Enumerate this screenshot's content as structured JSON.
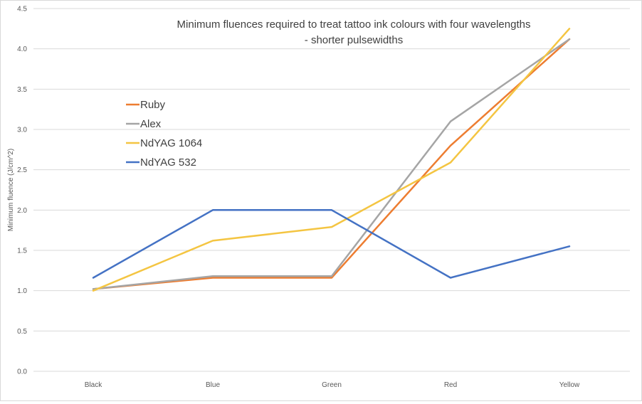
{
  "chart_data": {
    "type": "line",
    "title_line1": "Minimum fluences required to treat tattoo ink colours with four wavelengths",
    "title_line2": "- shorter pulsewidths",
    "xlabel": "",
    "ylabel": "Minimum fluence (J/cm^2)",
    "categories": [
      "Black",
      "Blue",
      "Green",
      "Red",
      "Yellow"
    ],
    "ylim": [
      0,
      4.5
    ],
    "yticks": [
      "0.0",
      "0.5",
      "1.0",
      "1.5",
      "2.0",
      "2.5",
      "3.0",
      "3.5",
      "4.0",
      "4.5"
    ],
    "grid": true,
    "legend_position": "left, inside plot",
    "series": [
      {
        "name": "Ruby",
        "color": "#ED7D31",
        "values": [
          1.02,
          1.16,
          1.16,
          2.8,
          4.12
        ]
      },
      {
        "name": "Alex",
        "color": "#A5A5A5",
        "values": [
          1.02,
          1.18,
          1.18,
          3.1,
          4.12
        ]
      },
      {
        "name": "NdYAG 1064",
        "color": "#F4C542",
        "values": [
          1.0,
          1.62,
          1.79,
          2.59,
          4.25
        ]
      },
      {
        "name": "NdYAG 532",
        "color": "#4472C4",
        "values": [
          1.16,
          2.0,
          2.0,
          1.16,
          1.55
        ]
      }
    ]
  }
}
